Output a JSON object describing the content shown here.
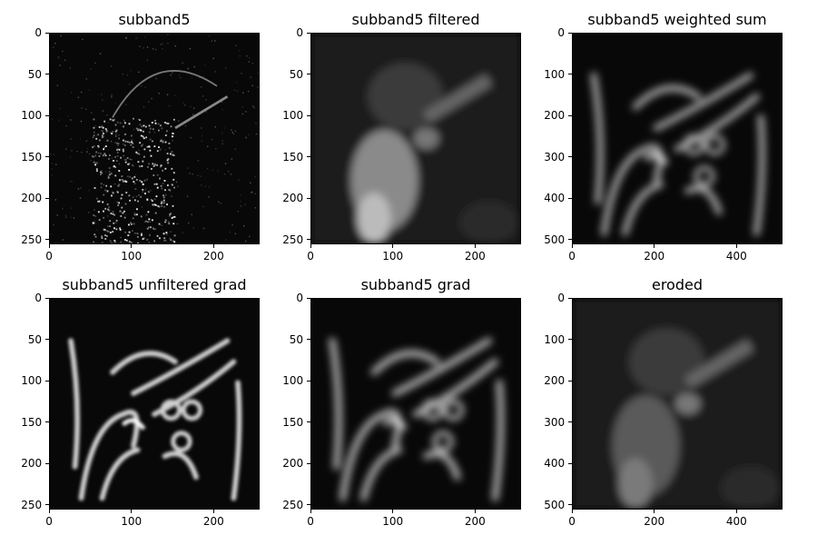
{
  "chart_data": [
    {
      "type": "image",
      "title": "subband5",
      "image": "grayscale Lena image, high-frequency subband: faint bright speckle edges on black",
      "xlim": [
        0,
        256
      ],
      "ylim": [
        256,
        0
      ],
      "xticks": [
        0,
        100,
        200
      ],
      "yticks": [
        0,
        50,
        100,
        150,
        200,
        250
      ]
    },
    {
      "type": "image",
      "title": "subband5 filtered",
      "image": "grayscale Lena image, smoothed subband energy: soft bright blotches lower-left",
      "xlim": [
        0,
        256
      ],
      "ylim": [
        256,
        0
      ],
      "xticks": [
        0,
        100,
        200
      ],
      "yticks": [
        0,
        50,
        100,
        150,
        200,
        250
      ]
    },
    {
      "type": "image",
      "title": "subband5 weighted sum",
      "image": "grayscale Lena image, blurred ring-like edge contours",
      "xlim": [
        0,
        512
      ],
      "ylim": [
        512,
        0
      ],
      "xticks": [
        0,
        200,
        400
      ],
      "yticks": [
        0,
        100,
        200,
        300,
        400,
        500
      ]
    },
    {
      "type": "image",
      "title": "subband5 unfiltered grad",
      "image": "grayscale Lena image, gradient magnitude with bright curved edges",
      "xlim": [
        0,
        256
      ],
      "ylim": [
        256,
        0
      ],
      "xticks": [
        0,
        100,
        200
      ],
      "yticks": [
        0,
        50,
        100,
        150,
        200,
        250
      ]
    },
    {
      "type": "image",
      "title": "subband5 grad",
      "image": "grayscale Lena image, smoothed gradient magnitude with curved edges",
      "xlim": [
        0,
        256
      ],
      "ylim": [
        256,
        0
      ],
      "xticks": [
        0,
        100,
        200
      ],
      "yticks": [
        0,
        50,
        100,
        150,
        200,
        250
      ]
    },
    {
      "type": "image",
      "title": "eroded",
      "image": "grayscale Lena image, eroded texture map: dim blotches lower-left",
      "xlim": [
        0,
        512
      ],
      "ylim": [
        512,
        0
      ],
      "xticks": [
        0,
        200,
        400
      ],
      "yticks": [
        0,
        100,
        200,
        300,
        400,
        500
      ]
    }
  ]
}
